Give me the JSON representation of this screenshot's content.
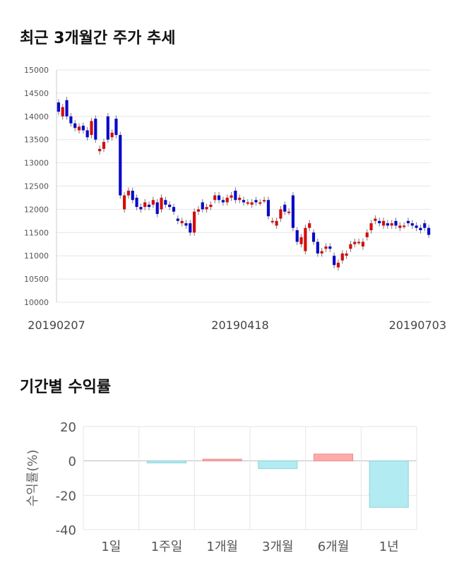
{
  "sections": {
    "price_title": "최근 3개월간 주가 추세",
    "returns_title": "기간별 수익률"
  },
  "colors": {
    "up": "#d40d0d",
    "down": "#0a0ac8",
    "wick": "#777777",
    "bar_positive": "#fdaaaa",
    "bar_negative": "#b2ebf2",
    "grid": "#e6e6e6"
  },
  "chart_data": [
    {
      "type": "candlestick",
      "title": "최근 3개월간 주가 추세",
      "ylim": [
        10000,
        15000
      ],
      "yticks": [
        10000,
        10500,
        11000,
        11500,
        12000,
        12500,
        13000,
        13500,
        14000,
        14500,
        15000
      ],
      "x_labels": [
        "20190207",
        "20190418",
        "20190703"
      ],
      "candles": [
        {
          "o": 14300,
          "c": 14100
        },
        {
          "o": 14000,
          "c": 14200
        },
        {
          "o": 14350,
          "c": 14000
        },
        {
          "o": 14000,
          "c": 13850
        },
        {
          "o": 13850,
          "c": 13750
        },
        {
          "o": 13700,
          "c": 13780
        },
        {
          "o": 13800,
          "c": 13700
        },
        {
          "o": 13700,
          "c": 13550
        },
        {
          "o": 13600,
          "c": 13900
        },
        {
          "o": 13950,
          "c": 13500
        },
        {
          "o": 13250,
          "c": 13300
        },
        {
          "o": 13300,
          "c": 13450
        },
        {
          "o": 14000,
          "c": 13500
        },
        {
          "o": 13550,
          "c": 13650
        },
        {
          "o": 13950,
          "c": 13600
        },
        {
          "o": 13600,
          "c": 12300
        },
        {
          "o": 12000,
          "c": 12300
        },
        {
          "o": 12300,
          "c": 12400
        },
        {
          "o": 12400,
          "c": 12200
        },
        {
          "o": 12250,
          "c": 12050
        },
        {
          "o": 12050,
          "c": 12000
        },
        {
          "o": 12050,
          "c": 12150
        },
        {
          "o": 12100,
          "c": 12050
        },
        {
          "o": 12100,
          "c": 12200
        },
        {
          "o": 12150,
          "c": 11900
        },
        {
          "o": 12000,
          "c": 12250
        },
        {
          "o": 12200,
          "c": 12100
        },
        {
          "o": 12100,
          "c": 12050
        },
        {
          "o": 12050,
          "c": 11950
        },
        {
          "o": 11800,
          "c": 11750
        },
        {
          "o": 11700,
          "c": 11750
        },
        {
          "o": 11700,
          "c": 11650
        },
        {
          "o": 11700,
          "c": 11500
        },
        {
          "o": 11500,
          "c": 11950
        },
        {
          "o": 11950,
          "c": 12000
        },
        {
          "o": 12150,
          "c": 12000
        },
        {
          "o": 12000,
          "c": 12050
        },
        {
          "o": 12050,
          "c": 12100
        },
        {
          "o": 12200,
          "c": 12300
        },
        {
          "o": 12300,
          "c": 12200
        },
        {
          "o": 12200,
          "c": 12150
        },
        {
          "o": 12150,
          "c": 12250
        },
        {
          "o": 12250,
          "c": 12300
        },
        {
          "o": 12400,
          "c": 12200
        },
        {
          "o": 12200,
          "c": 12250
        },
        {
          "o": 12200,
          "c": 12150
        },
        {
          "o": 12150,
          "c": 12150
        },
        {
          "o": 12100,
          "c": 12150
        },
        {
          "o": 12200,
          "c": 12150
        },
        {
          "o": 12150,
          "c": 12150
        },
        {
          "o": 12200,
          "c": 12200
        },
        {
          "o": 12200,
          "c": 11850
        },
        {
          "o": 11750,
          "c": 11750
        },
        {
          "o": 11650,
          "c": 11750
        },
        {
          "o": 11800,
          "c": 12000
        },
        {
          "o": 12100,
          "c": 11950
        },
        {
          "o": 11950,
          "c": 11950
        },
        {
          "o": 12300,
          "c": 11600
        },
        {
          "o": 11550,
          "c": 11300
        },
        {
          "o": 11250,
          "c": 11400
        },
        {
          "o": 11100,
          "c": 11600
        },
        {
          "o": 11600,
          "c": 11700
        },
        {
          "o": 11500,
          "c": 11300
        },
        {
          "o": 11300,
          "c": 11050
        },
        {
          "o": 11050,
          "c": 11100
        },
        {
          "o": 11150,
          "c": 11200
        },
        {
          "o": 11200,
          "c": 11150
        },
        {
          "o": 11000,
          "c": 10800
        },
        {
          "o": 10750,
          "c": 10850
        },
        {
          "o": 10900,
          "c": 11050
        },
        {
          "o": 11000,
          "c": 11050
        },
        {
          "o": 11150,
          "c": 11250
        },
        {
          "o": 11250,
          "c": 11300
        },
        {
          "o": 11300,
          "c": 11300
        },
        {
          "o": 11200,
          "c": 11300
        },
        {
          "o": 11400,
          "c": 11500
        },
        {
          "o": 11550,
          "c": 11700
        },
        {
          "o": 11750,
          "c": 11800
        },
        {
          "o": 11750,
          "c": 11700
        },
        {
          "o": 11650,
          "c": 11750
        },
        {
          "o": 11700,
          "c": 11650
        },
        {
          "o": 11650,
          "c": 11700
        },
        {
          "o": 11750,
          "c": 11650
        },
        {
          "o": 11600,
          "c": 11650
        },
        {
          "o": 11650,
          "c": 11650
        },
        {
          "o": 11750,
          "c": 11700
        },
        {
          "o": 11700,
          "c": 11650
        },
        {
          "o": 11650,
          "c": 11600
        },
        {
          "o": 11600,
          "c": 11550
        },
        {
          "o": 11700,
          "c": 11600
        },
        {
          "o": 11600,
          "c": 11450
        }
      ]
    },
    {
      "type": "bar",
      "title": "기간별 수익률",
      "ylabel": "수익률(%)",
      "ylim": [
        -40,
        20
      ],
      "yticks": [
        -40,
        -20,
        0,
        20
      ],
      "categories": [
        "1일",
        "1주일",
        "1개월",
        "3개월",
        "6개월",
        "1년"
      ],
      "values": [
        0,
        -1.2,
        1.0,
        -4.5,
        4.0,
        -27.0
      ]
    }
  ]
}
